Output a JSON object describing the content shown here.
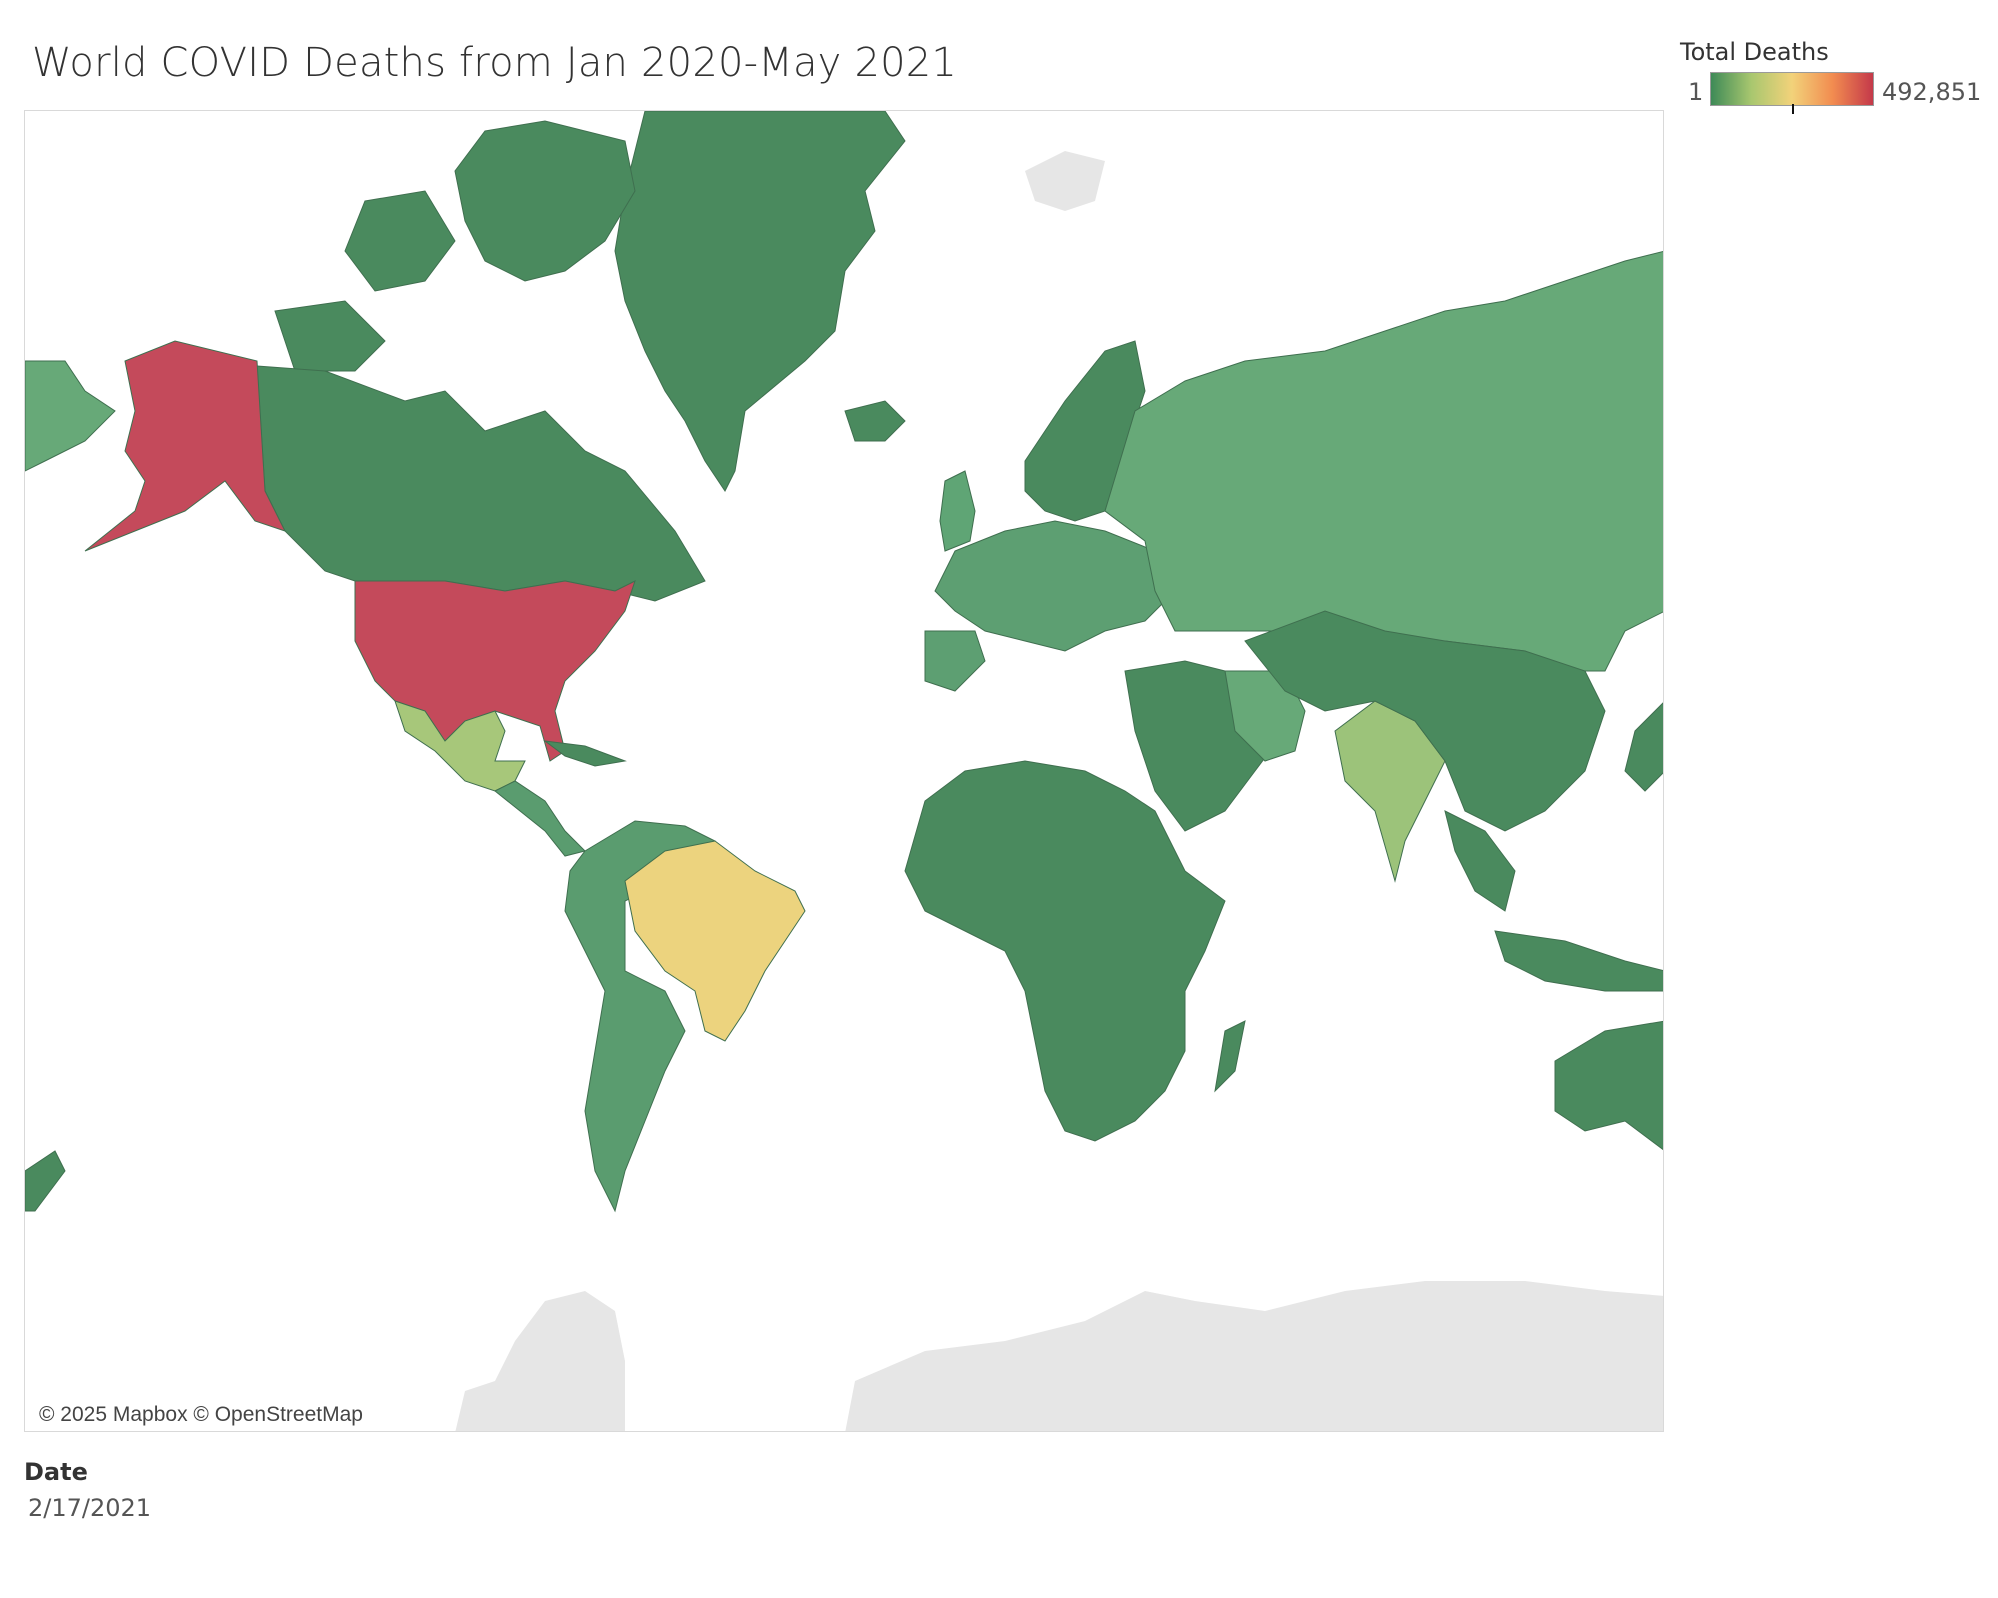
{
  "title": "World COVID Deaths from Jan 2020-May 2021",
  "legend": {
    "title": "Total Deaths",
    "min_label": "1",
    "max_label": "492,851",
    "min_value": 1,
    "max_value": 492851,
    "gradient_colors": [
      "#3e8a57",
      "#a9c76f",
      "#f2d27a",
      "#f28c50",
      "#c4394a"
    ]
  },
  "map": {
    "attribution": "© 2025 Mapbox © OpenStreetMap",
    "land_no_data_color": "#e6e6e6",
    "water_color": "#ffffff",
    "country_colors": {
      "United States": "#c44a5b",
      "Brazil": "#ecd37e",
      "Mexico": "#a7c77a",
      "India": "#9cc37a",
      "Russia": "#67a978",
      "United Kingdom": "#5fa575",
      "Western Europe": "#5d9f72",
      "Canada": "#4a8a5e",
      "Greenland": "#4a8a5e",
      "Africa": "#4a8a5e",
      "China": "#4a8a5e",
      "Australia": "#4a8a5e",
      "South America (other)": "#5a9c6f"
    }
  },
  "filter": {
    "label": "Date",
    "value": "2/17/2021"
  }
}
